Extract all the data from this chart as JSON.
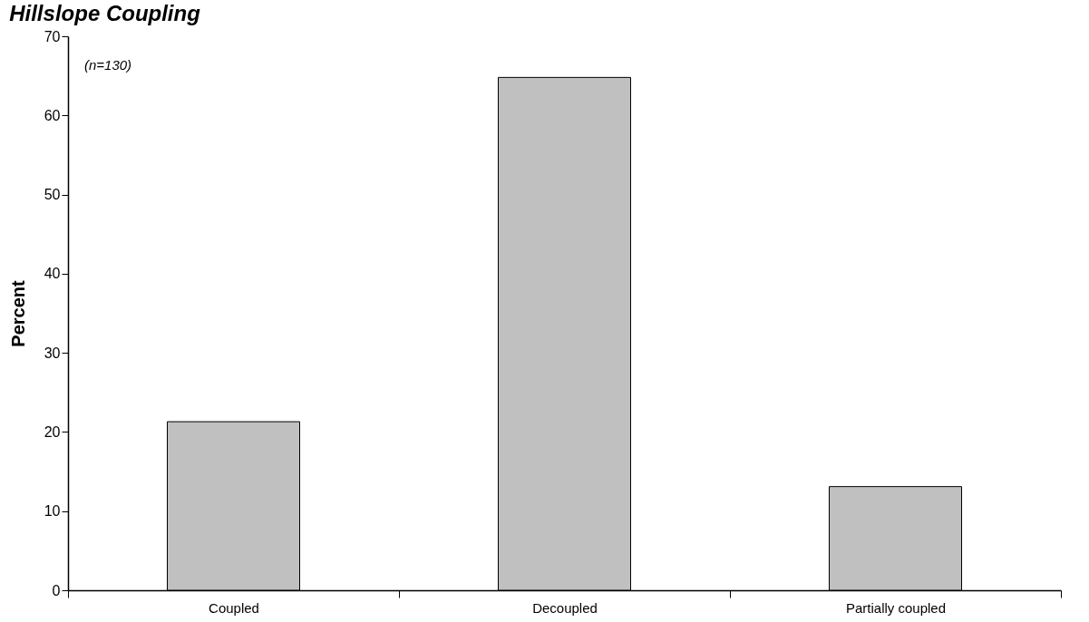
{
  "chart_data": {
    "type": "bar",
    "title": "Hillslope Coupling",
    "ylabel": "Percent",
    "categories": [
      "Coupled",
      "Decoupled",
      "Partially coupled"
    ],
    "values": [
      21.3,
      64.8,
      13.1
    ],
    "color": "#c0c0c0",
    "ylim": [
      0,
      70
    ],
    "yticks": [
      0,
      10,
      20,
      30,
      40,
      50,
      60,
      70
    ],
    "grid": false,
    "annotations": [
      "(n=130)"
    ]
  }
}
